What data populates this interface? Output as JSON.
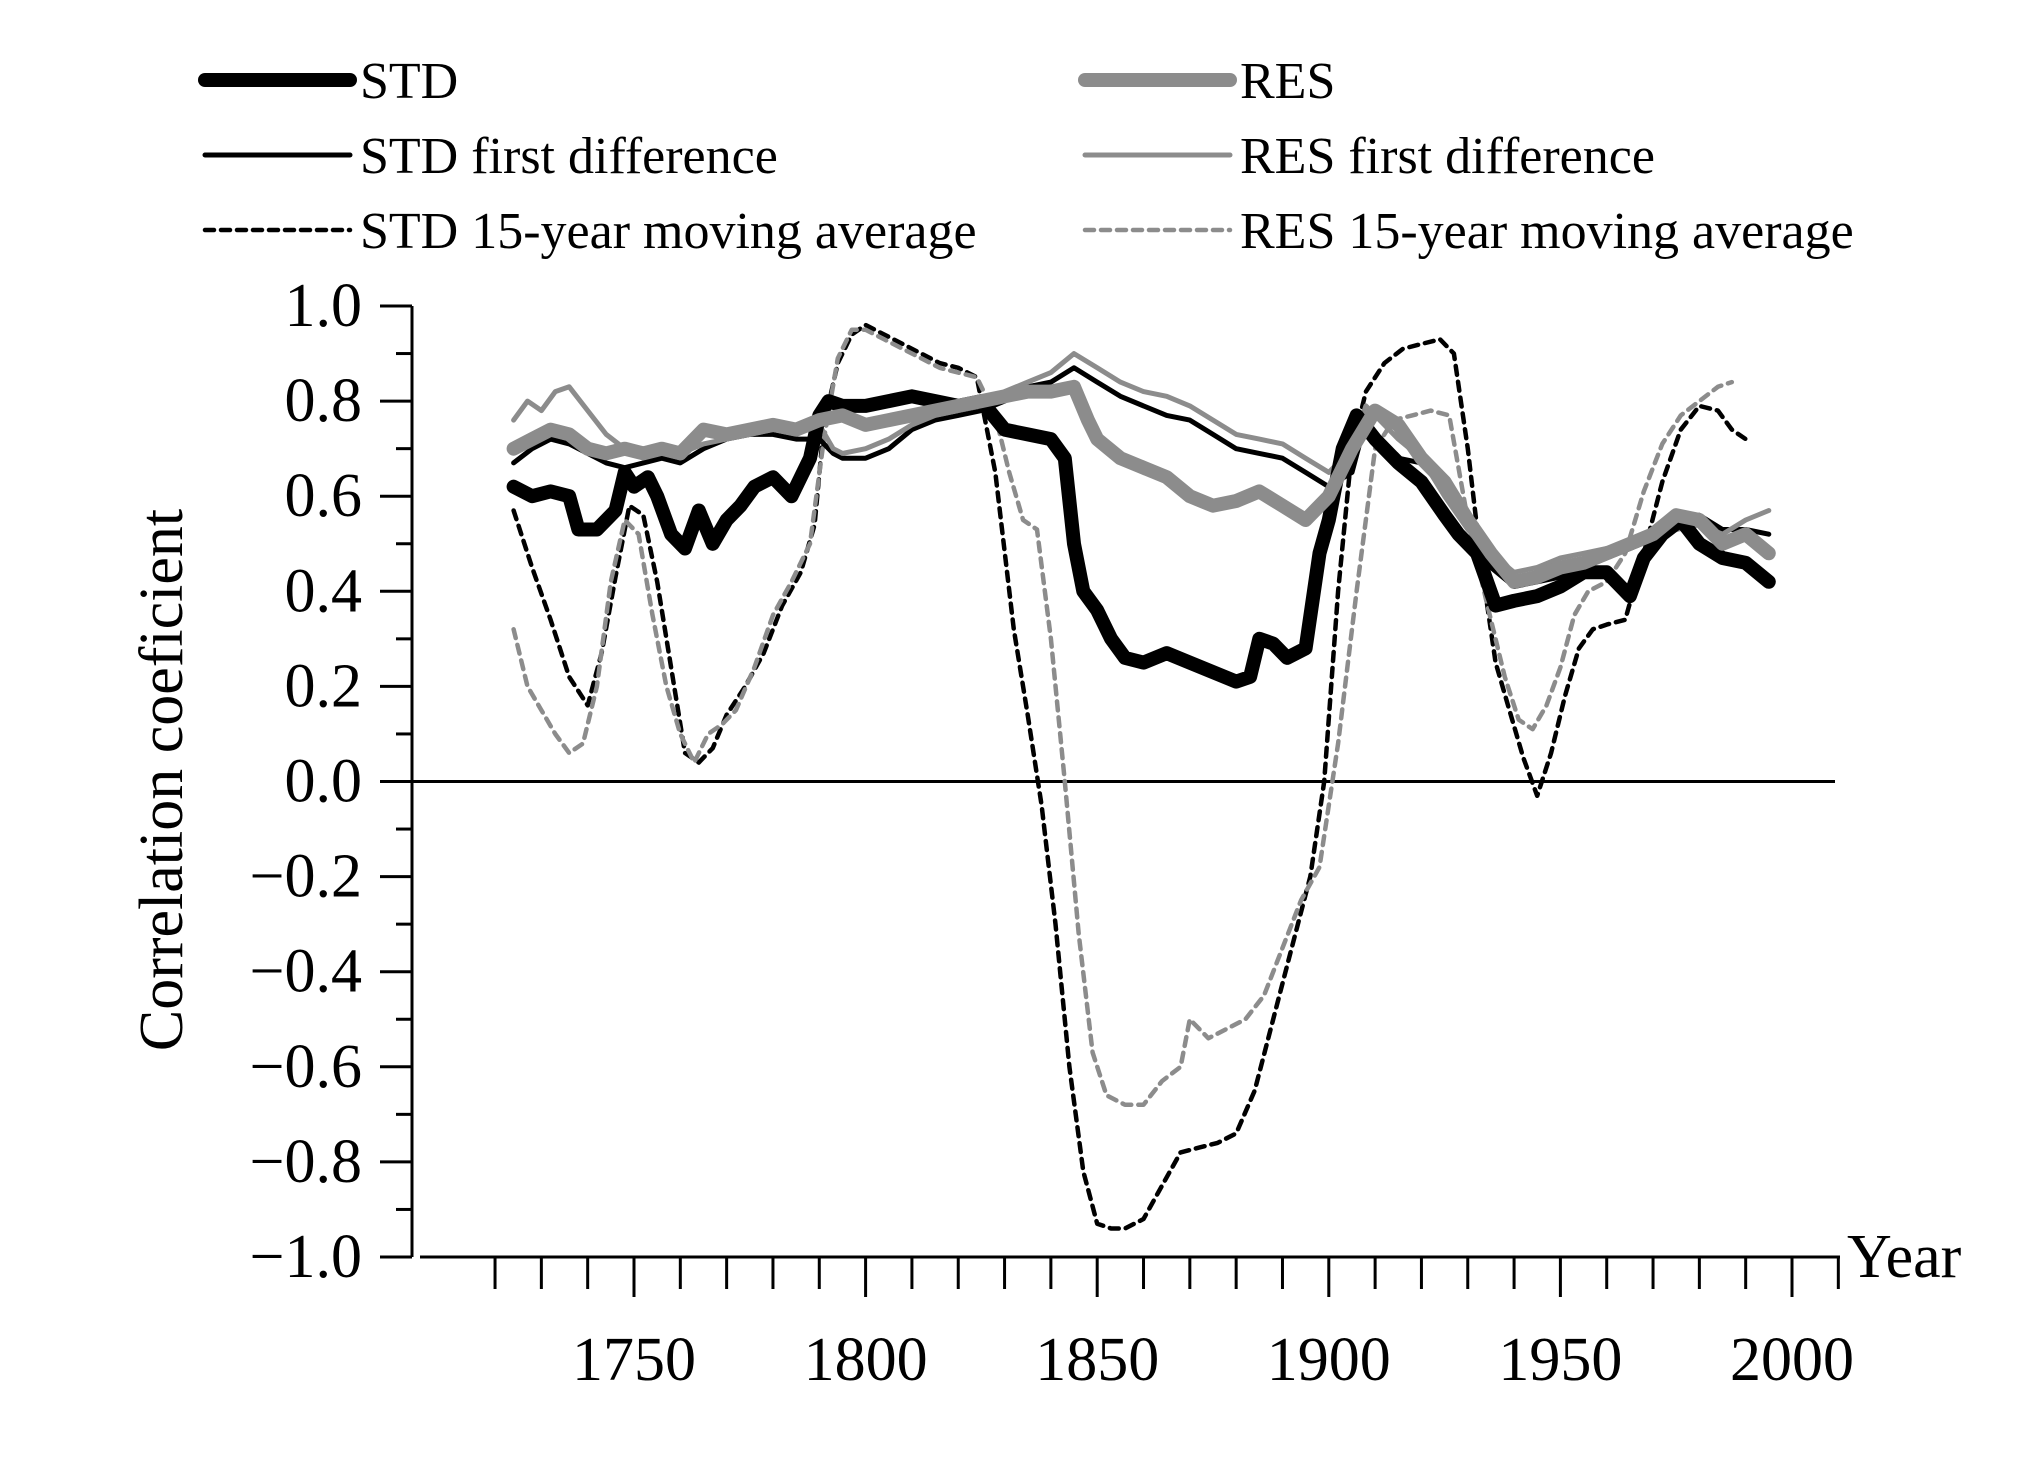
{
  "chart_data": {
    "type": "line",
    "title": "",
    "xlabel": "Year",
    "ylabel": "Correlation coeficient",
    "xlim": [
      1710,
      2010
    ],
    "ylim": [
      -1.0,
      1.0
    ],
    "x_ticks": [
      1750,
      1800,
      1850,
      1900,
      1950,
      2000
    ],
    "x_tick_labels": [
      "1750",
      "1800",
      "1850",
      "1900",
      "1950",
      "2000"
    ],
    "y_ticks": [
      1.0,
      0.8,
      0.6,
      0.4,
      0.2,
      0.0,
      -0.2,
      -0.4,
      -0.6,
      -0.8,
      -1.0
    ],
    "y_tick_labels": [
      "1.0",
      "0.8",
      "0.6",
      "0.4",
      "0.2",
      "0.0",
      "−0.2",
      "−0.4",
      "−0.6",
      "−0.8",
      "−1.0"
    ],
    "zero_line": true,
    "legend_position": "top",
    "series": [
      {
        "name": "STD",
        "color": "#000000",
        "style": "thick",
        "x": [
          1724,
          1728,
          1732,
          1736,
          1738,
          1742,
          1746,
          1748,
          1750,
          1753,
          1755,
          1758,
          1761,
          1764,
          1767,
          1770,
          1773,
          1776,
          1780,
          1784,
          1788,
          1790,
          1792,
          1795,
          1800,
          1805,
          1810,
          1815,
          1820,
          1825,
          1830,
          1835,
          1840,
          1843,
          1845,
          1847,
          1850,
          1853,
          1856,
          1860,
          1865,
          1870,
          1875,
          1880,
          1883,
          1885,
          1888,
          1891,
          1895,
          1898,
          1900,
          1903,
          1906,
          1910,
          1915,
          1920,
          1925,
          1928,
          1932,
          1936,
          1940,
          1945,
          1950,
          1955,
          1960,
          1965,
          1968,
          1972,
          1976,
          1980,
          1985,
          1990,
          1995
        ],
        "y": [
          0.62,
          0.6,
          0.61,
          0.6,
          0.53,
          0.53,
          0.57,
          0.65,
          0.62,
          0.64,
          0.6,
          0.52,
          0.49,
          0.57,
          0.5,
          0.55,
          0.58,
          0.62,
          0.64,
          0.6,
          0.68,
          0.77,
          0.8,
          0.79,
          0.79,
          0.8,
          0.81,
          0.8,
          0.79,
          0.8,
          0.74,
          0.73,
          0.72,
          0.68,
          0.5,
          0.4,
          0.36,
          0.3,
          0.26,
          0.25,
          0.27,
          0.25,
          0.23,
          0.21,
          0.22,
          0.3,
          0.29,
          0.26,
          0.28,
          0.48,
          0.55,
          0.7,
          0.77,
          0.72,
          0.67,
          0.63,
          0.56,
          0.52,
          0.48,
          0.37,
          0.38,
          0.39,
          0.41,
          0.44,
          0.44,
          0.39,
          0.47,
          0.52,
          0.55,
          0.5,
          0.47,
          0.46,
          0.42
        ]
      },
      {
        "name": "RES",
        "color": "#8c8c8c",
        "style": "thick",
        "x": [
          1724,
          1728,
          1732,
          1736,
          1740,
          1744,
          1748,
          1752,
          1756,
          1760,
          1765,
          1770,
          1775,
          1780,
          1785,
          1790,
          1795,
          1800,
          1805,
          1810,
          1815,
          1820,
          1825,
          1830,
          1835,
          1840,
          1845,
          1848,
          1850,
          1855,
          1860,
          1865,
          1870,
          1875,
          1880,
          1885,
          1890,
          1895,
          1900,
          1905,
          1910,
          1915,
          1920,
          1925,
          1930,
          1935,
          1940,
          1945,
          1950,
          1955,
          1960,
          1965,
          1970,
          1975,
          1980,
          1985,
          1990,
          1995
        ],
        "y": [
          0.7,
          0.72,
          0.74,
          0.73,
          0.7,
          0.69,
          0.7,
          0.69,
          0.7,
          0.69,
          0.74,
          0.73,
          0.74,
          0.75,
          0.74,
          0.76,
          0.77,
          0.75,
          0.76,
          0.77,
          0.78,
          0.79,
          0.8,
          0.81,
          0.82,
          0.82,
          0.83,
          0.76,
          0.72,
          0.68,
          0.66,
          0.64,
          0.6,
          0.58,
          0.59,
          0.61,
          0.58,
          0.55,
          0.6,
          0.7,
          0.78,
          0.75,
          0.68,
          0.63,
          0.55,
          0.48,
          0.42,
          0.43,
          0.45,
          0.46,
          0.48,
          0.5,
          0.52,
          0.56,
          0.55,
          0.5,
          0.52,
          0.48
        ]
      },
      {
        "name": "STD first difference",
        "color": "#000000",
        "style": "thin",
        "x": [
          1724,
          1728,
          1732,
          1736,
          1740,
          1744,
          1748,
          1752,
          1756,
          1760,
          1765,
          1770,
          1775,
          1780,
          1785,
          1790,
          1793,
          1795,
          1800,
          1805,
          1810,
          1815,
          1820,
          1825,
          1830,
          1835,
          1840,
          1845,
          1850,
          1855,
          1860,
          1865,
          1870,
          1875,
          1880,
          1885,
          1890,
          1895,
          1900,
          1905,
          1908,
          1910,
          1915,
          1920,
          1925,
          1930,
          1935,
          1940,
          1945,
          1950,
          1955,
          1960,
          1965,
          1970,
          1975,
          1980,
          1985,
          1990,
          1995
        ],
        "y": [
          0.67,
          0.7,
          0.72,
          0.71,
          0.69,
          0.67,
          0.66,
          0.67,
          0.68,
          0.67,
          0.7,
          0.72,
          0.73,
          0.73,
          0.72,
          0.72,
          0.69,
          0.68,
          0.68,
          0.7,
          0.74,
          0.76,
          0.77,
          0.78,
          0.8,
          0.83,
          0.84,
          0.87,
          0.84,
          0.81,
          0.79,
          0.77,
          0.76,
          0.73,
          0.7,
          0.69,
          0.68,
          0.65,
          0.62,
          0.65,
          0.76,
          0.73,
          0.68,
          0.67,
          0.62,
          0.56,
          0.45,
          0.41,
          0.42,
          0.43,
          0.45,
          0.47,
          0.49,
          0.51,
          0.55,
          0.56,
          0.53,
          0.53,
          0.52
        ]
      },
      {
        "name": "RES first difference",
        "color": "#8c8c8c",
        "style": "thin",
        "x": [
          1724,
          1727,
          1730,
          1733,
          1736,
          1740,
          1744,
          1748,
          1752,
          1756,
          1760,
          1765,
          1770,
          1775,
          1780,
          1785,
          1790,
          1793,
          1795,
          1800,
          1805,
          1810,
          1815,
          1820,
          1825,
          1830,
          1835,
          1840,
          1845,
          1850,
          1855,
          1860,
          1865,
          1870,
          1875,
          1880,
          1885,
          1890,
          1895,
          1900,
          1905,
          1908,
          1910,
          1915,
          1920,
          1925,
          1930,
          1935,
          1940,
          1945,
          1950,
          1955,
          1960,
          1965,
          1970,
          1975,
          1980,
          1985,
          1990,
          1995
        ],
        "y": [
          0.76,
          0.8,
          0.78,
          0.82,
          0.83,
          0.78,
          0.73,
          0.7,
          0.7,
          0.69,
          0.69,
          0.71,
          0.72,
          0.73,
          0.74,
          0.75,
          0.75,
          0.7,
          0.69,
          0.7,
          0.72,
          0.75,
          0.77,
          0.78,
          0.79,
          0.82,
          0.84,
          0.86,
          0.9,
          0.87,
          0.84,
          0.82,
          0.81,
          0.79,
          0.76,
          0.73,
          0.72,
          0.71,
          0.68,
          0.65,
          0.7,
          0.79,
          0.77,
          0.72,
          0.68,
          0.6,
          0.53,
          0.48,
          0.44,
          0.45,
          0.47,
          0.48,
          0.49,
          0.5,
          0.51,
          0.53,
          0.54,
          0.52,
          0.55,
          0.57
        ]
      },
      {
        "name": "STD 15-year moving average",
        "color": "#000000",
        "style": "dashed",
        "x": [
          1724,
          1728,
          1732,
          1736,
          1740,
          1743,
          1746,
          1749,
          1752,
          1755,
          1758,
          1761,
          1764,
          1767,
          1770,
          1774,
          1778,
          1782,
          1786,
          1789,
          1791,
          1794,
          1797,
          1800,
          1804,
          1808,
          1812,
          1816,
          1820,
          1824,
          1828,
          1832,
          1835,
          1838,
          1841,
          1844,
          1847,
          1850,
          1853,
          1856,
          1860,
          1864,
          1868,
          1872,
          1876,
          1880,
          1884,
          1888,
          1892,
          1896,
          1899,
          1902,
          1905,
          1908,
          1912,
          1916,
          1920,
          1924,
          1927,
          1930,
          1933,
          1936,
          1939,
          1942,
          1945,
          1948,
          1951,
          1954,
          1957,
          1960,
          1964,
          1968,
          1972,
          1976,
          1980,
          1984,
          1987,
          1990
        ],
        "y": [
          0.57,
          0.45,
          0.34,
          0.22,
          0.16,
          0.27,
          0.43,
          0.58,
          0.56,
          0.42,
          0.24,
          0.06,
          0.04,
          0.07,
          0.14,
          0.2,
          0.27,
          0.37,
          0.44,
          0.54,
          0.75,
          0.88,
          0.94,
          0.96,
          0.94,
          0.92,
          0.9,
          0.88,
          0.87,
          0.85,
          0.65,
          0.32,
          0.14,
          -0.05,
          -0.3,
          -0.6,
          -0.82,
          -0.93,
          -0.94,
          -0.94,
          -0.92,
          -0.85,
          -0.78,
          -0.77,
          -0.76,
          -0.74,
          -0.65,
          -0.5,
          -0.35,
          -0.2,
          0.0,
          0.4,
          0.7,
          0.82,
          0.88,
          0.91,
          0.92,
          0.93,
          0.9,
          0.7,
          0.45,
          0.25,
          0.15,
          0.05,
          -0.03,
          0.06,
          0.18,
          0.28,
          0.32,
          0.33,
          0.34,
          0.48,
          0.63,
          0.74,
          0.79,
          0.78,
          0.74,
          0.72
        ]
      },
      {
        "name": "RES 15-year moving average",
        "color": "#8c8c8c",
        "style": "dashed",
        "x": [
          1724,
          1727,
          1730,
          1733,
          1736,
          1739,
          1742,
          1745,
          1748,
          1751,
          1754,
          1757,
          1760,
          1763,
          1766,
          1769,
          1772,
          1776,
          1780,
          1784,
          1788,
          1791,
          1794,
          1797,
          1800,
          1804,
          1808,
          1812,
          1816,
          1820,
          1824,
          1828,
          1831,
          1834,
          1837,
          1840,
          1843,
          1846,
          1849,
          1852,
          1856,
          1860,
          1864,
          1868,
          1870,
          1874,
          1878,
          1882,
          1886,
          1890,
          1894,
          1898,
          1902,
          1906,
          1910,
          1914,
          1918,
          1922,
          1926,
          1930,
          1934,
          1938,
          1941,
          1944,
          1947,
          1950,
          1953,
          1956,
          1960,
          1964,
          1968,
          1972,
          1976,
          1980,
          1984,
          1987
        ],
        "y": [
          0.32,
          0.2,
          0.15,
          0.1,
          0.06,
          0.08,
          0.2,
          0.42,
          0.55,
          0.52,
          0.35,
          0.2,
          0.1,
          0.04,
          0.1,
          0.12,
          0.15,
          0.24,
          0.35,
          0.42,
          0.5,
          0.72,
          0.89,
          0.95,
          0.95,
          0.93,
          0.91,
          0.89,
          0.87,
          0.86,
          0.85,
          0.77,
          0.65,
          0.55,
          0.53,
          0.3,
          0.0,
          -0.32,
          -0.57,
          -0.66,
          -0.68,
          -0.68,
          -0.63,
          -0.6,
          -0.5,
          -0.54,
          -0.52,
          -0.5,
          -0.45,
          -0.35,
          -0.25,
          -0.18,
          0.08,
          0.4,
          0.7,
          0.76,
          0.77,
          0.78,
          0.77,
          0.55,
          0.38,
          0.22,
          0.13,
          0.11,
          0.16,
          0.24,
          0.35,
          0.4,
          0.42,
          0.48,
          0.61,
          0.71,
          0.77,
          0.8,
          0.83,
          0.84
        ]
      }
    ]
  }
}
